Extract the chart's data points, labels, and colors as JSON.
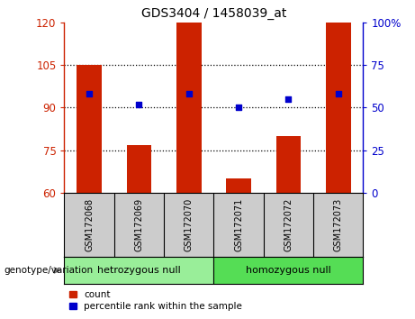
{
  "title": "GDS3404 / 1458039_at",
  "categories": [
    "GSM172068",
    "GSM172069",
    "GSM172070",
    "GSM172071",
    "GSM172072",
    "GSM172073"
  ],
  "bar_values": [
    105,
    77,
    120,
    65,
    80,
    120
  ],
  "bar_bottom": 60,
  "dot_right_values": [
    58,
    52,
    58,
    50,
    55,
    58
  ],
  "ylim_left": [
    60,
    120
  ],
  "ylim_right": [
    0,
    100
  ],
  "yticks_left": [
    60,
    75,
    90,
    105,
    120
  ],
  "ytick_labels_left": [
    "60",
    "75",
    "90",
    "105",
    "120"
  ],
  "ytick_labels_right": [
    "0",
    "25",
    "50",
    "75",
    "100%"
  ],
  "yticks_right": [
    0,
    25,
    50,
    75,
    100
  ],
  "bar_color": "#cc2200",
  "dot_color": "#0000cc",
  "group1_label": "hetrozygous null",
  "group2_label": "homozygous null",
  "group1_color": "#99ee99",
  "group2_color": "#55dd55",
  "tick_bg_color": "#cccccc",
  "genotype_label": "genotype/variation",
  "legend_count": "count",
  "legend_percentile": "percentile rank within the sample",
  "grid_yticks": [
    75,
    90,
    105
  ],
  "plot_bg_color": "#ffffff"
}
